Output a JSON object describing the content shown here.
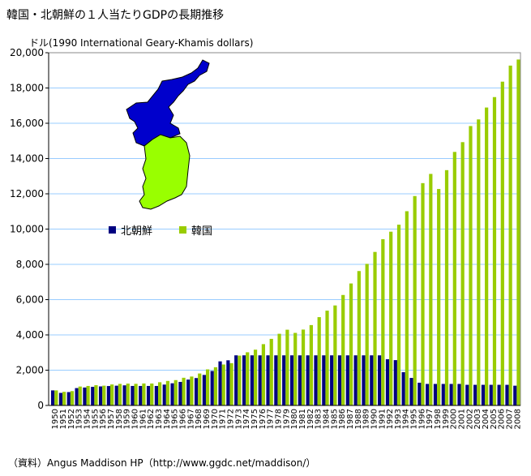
{
  "title": "韓国・北朝鮮の１人当たりGDPの長期推移",
  "source": "（資料）Angus Maddison HP（http://www.ggdc.net/maddison/）",
  "chart_data": {
    "type": "bar",
    "title": "韓国・北朝鮮の１人当たりGDPの長期推移",
    "ylabel": "ドル(1990 International Geary-Khamis dollars)",
    "xlabel": "",
    "ylim": [
      0,
      20000
    ],
    "yticks": [
      0,
      2000,
      4000,
      6000,
      8000,
      10000,
      12000,
      14000,
      16000,
      18000,
      20000
    ],
    "ytick_labels": [
      "0",
      "2,000",
      "4,000",
      "6,000",
      "8,000",
      "10,000",
      "12,000",
      "14,000",
      "16,000",
      "18,000",
      "20,000"
    ],
    "grid": "horizontal",
    "legend": "middle-left",
    "categories": [
      "1950",
      "1951",
      "1952",
      "1953",
      "1954",
      "1955",
      "1956",
      "1957",
      "1958",
      "1959",
      "1960",
      "1961",
      "1962",
      "1963",
      "1964",
      "1965",
      "1966",
      "1967",
      "1968",
      "1969",
      "1970",
      "1971",
      "1972",
      "1973",
      "1974",
      "1975",
      "1976",
      "1977",
      "1978",
      "1979",
      "1980",
      "1981",
      "1982",
      "1983",
      "1984",
      "1985",
      "1986",
      "1987",
      "1988",
      "1989",
      "1990",
      "1991",
      "1992",
      "1993",
      "1994",
      "1995",
      "1996",
      "1997",
      "1998",
      "1999",
      "2000",
      "2001",
      "2002",
      "2003",
      "2004",
      "2005",
      "2006",
      "2007",
      "2008"
    ],
    "series": [
      {
        "name": "北朝鮮",
        "color": "#000080",
        "values": [
          854,
          712,
          757,
          984,
          1016,
          1054,
          1079,
          1100,
          1120,
          1140,
          1105,
          1105,
          1105,
          1105,
          1183,
          1257,
          1335,
          1467,
          1553,
          1730,
          1954,
          2500,
          2560,
          2841,
          2841,
          2841,
          2841,
          2841,
          2841,
          2841,
          2841,
          2841,
          2841,
          2841,
          2841,
          2841,
          2841,
          2841,
          2841,
          2841,
          2841,
          2841,
          2620,
          2570,
          1885,
          1560,
          1290,
          1220,
          1220,
          1220,
          1220,
          1220,
          1170,
          1170,
          1170,
          1170,
          1170,
          1170,
          1120
        ]
      },
      {
        "name": "韓国",
        "color": "#99cc00",
        "values": [
          854,
          772,
          814,
          1072,
          1105,
          1148,
          1121,
          1189,
          1223,
          1239,
          1226,
          1247,
          1245,
          1316,
          1389,
          1436,
          1570,
          1639,
          1812,
          2045,
          2167,
          2322,
          2398,
          2824,
          3015,
          3162,
          3476,
          3775,
          4064,
          4294,
          4114,
          4302,
          4557,
          5007,
          5375,
          5670,
          6263,
          6916,
          7621,
          8027,
          8704,
          9425,
          9852,
          10250,
          11013,
          11873,
          12605,
          13128,
          12272,
          13341,
          14375,
          14929,
          15842,
          16218,
          16892,
          17483,
          18358,
          19269,
          19614
        ]
      }
    ]
  }
}
